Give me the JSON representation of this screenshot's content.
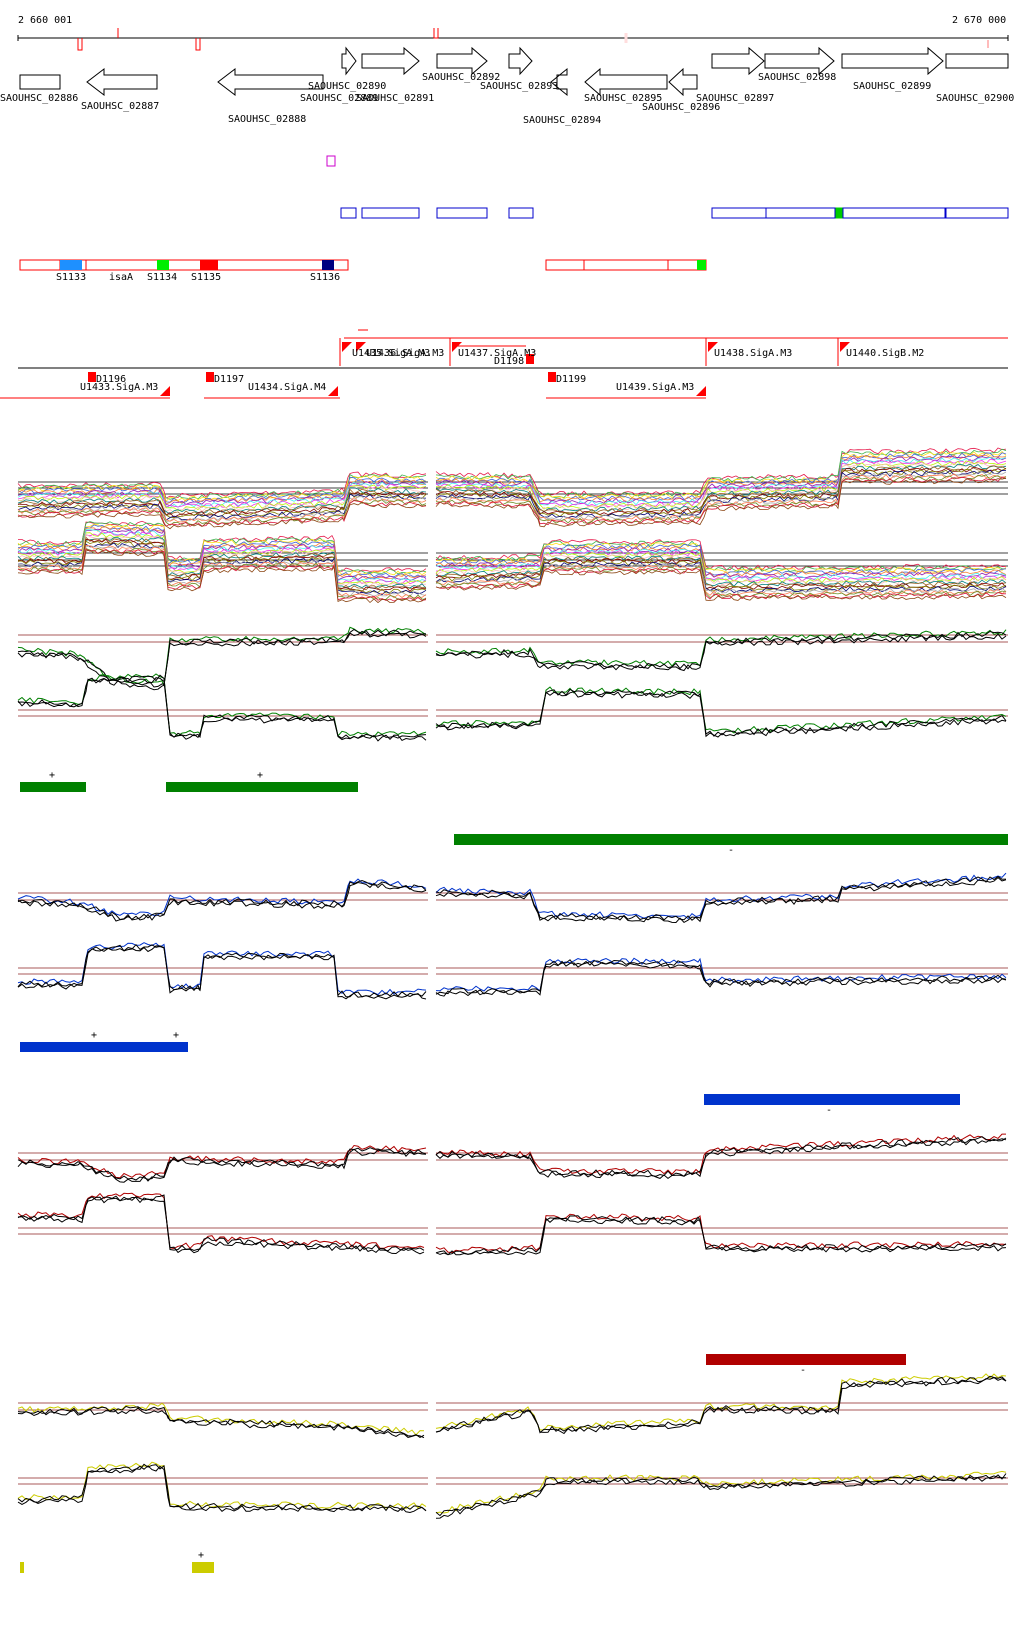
{
  "coords": {
    "start": "2 660 001",
    "end": "2 670 000"
  },
  "genes": [
    {
      "label": "SAOUHSC_02886",
      "dir": "none"
    },
    {
      "label": "SAOUHSC_02887",
      "dir": "left"
    },
    {
      "label": "SAOUHSC_02888",
      "dir": "left"
    },
    {
      "label": "SAOUHSC_02890",
      "dir": "right"
    },
    {
      "label": "SAOUHSC_02889",
      "dir": "right"
    },
    {
      "label": "SAOUHSC_02891",
      "dir": "right"
    },
    {
      "label": "SAOUHSC_02892",
      "dir": "right"
    },
    {
      "label": "SAOUHSC_02893",
      "dir": "right"
    },
    {
      "label": "SAOUHSC_02894",
      "dir": "left"
    },
    {
      "label": "SAOUHSC_02895",
      "dir": "left"
    },
    {
      "label": "SAOUHSC_02896",
      "dir": "left"
    },
    {
      "label": "SAOUHSC_02897",
      "dir": "right"
    },
    {
      "label": "SAOUHSC_02898",
      "dir": "right"
    },
    {
      "label": "SAOUHSC_02899",
      "dir": "right"
    },
    {
      "label": "SAOUHSC_02900",
      "dir": "none"
    }
  ],
  "srna_labels": [
    "S1133",
    "isaA",
    "S1134",
    "S1135",
    "S1136"
  ],
  "upshifts": [
    "U1433.SigA.M3",
    "U1434.SigA.M4",
    "U1435.SigA.M3",
    "U1436.SigA.M3",
    "U1437.SigA.M3",
    "U1438.SigA.M3",
    "U1439.SigA.M3",
    "U1440.SigB.M2"
  ],
  "downshifts": [
    "D1196",
    "D1197",
    "D1198",
    "D1199"
  ],
  "colors": {
    "green": "#008000",
    "light_green": "#33aa33",
    "blue": "#0033cc",
    "red": "#b00000",
    "yellow": "#cccc00",
    "gene_outline": "#000000",
    "utr_red": "#ff0000",
    "blue_box": "#0000cc",
    "magenta": "#cc00cc",
    "sky": "#1e90ff",
    "lime": "#00ee00",
    "navy": "#000080",
    "threshold": "#8b2020"
  },
  "strand_marks": {
    "plus": "+",
    "minus": "-"
  }
}
